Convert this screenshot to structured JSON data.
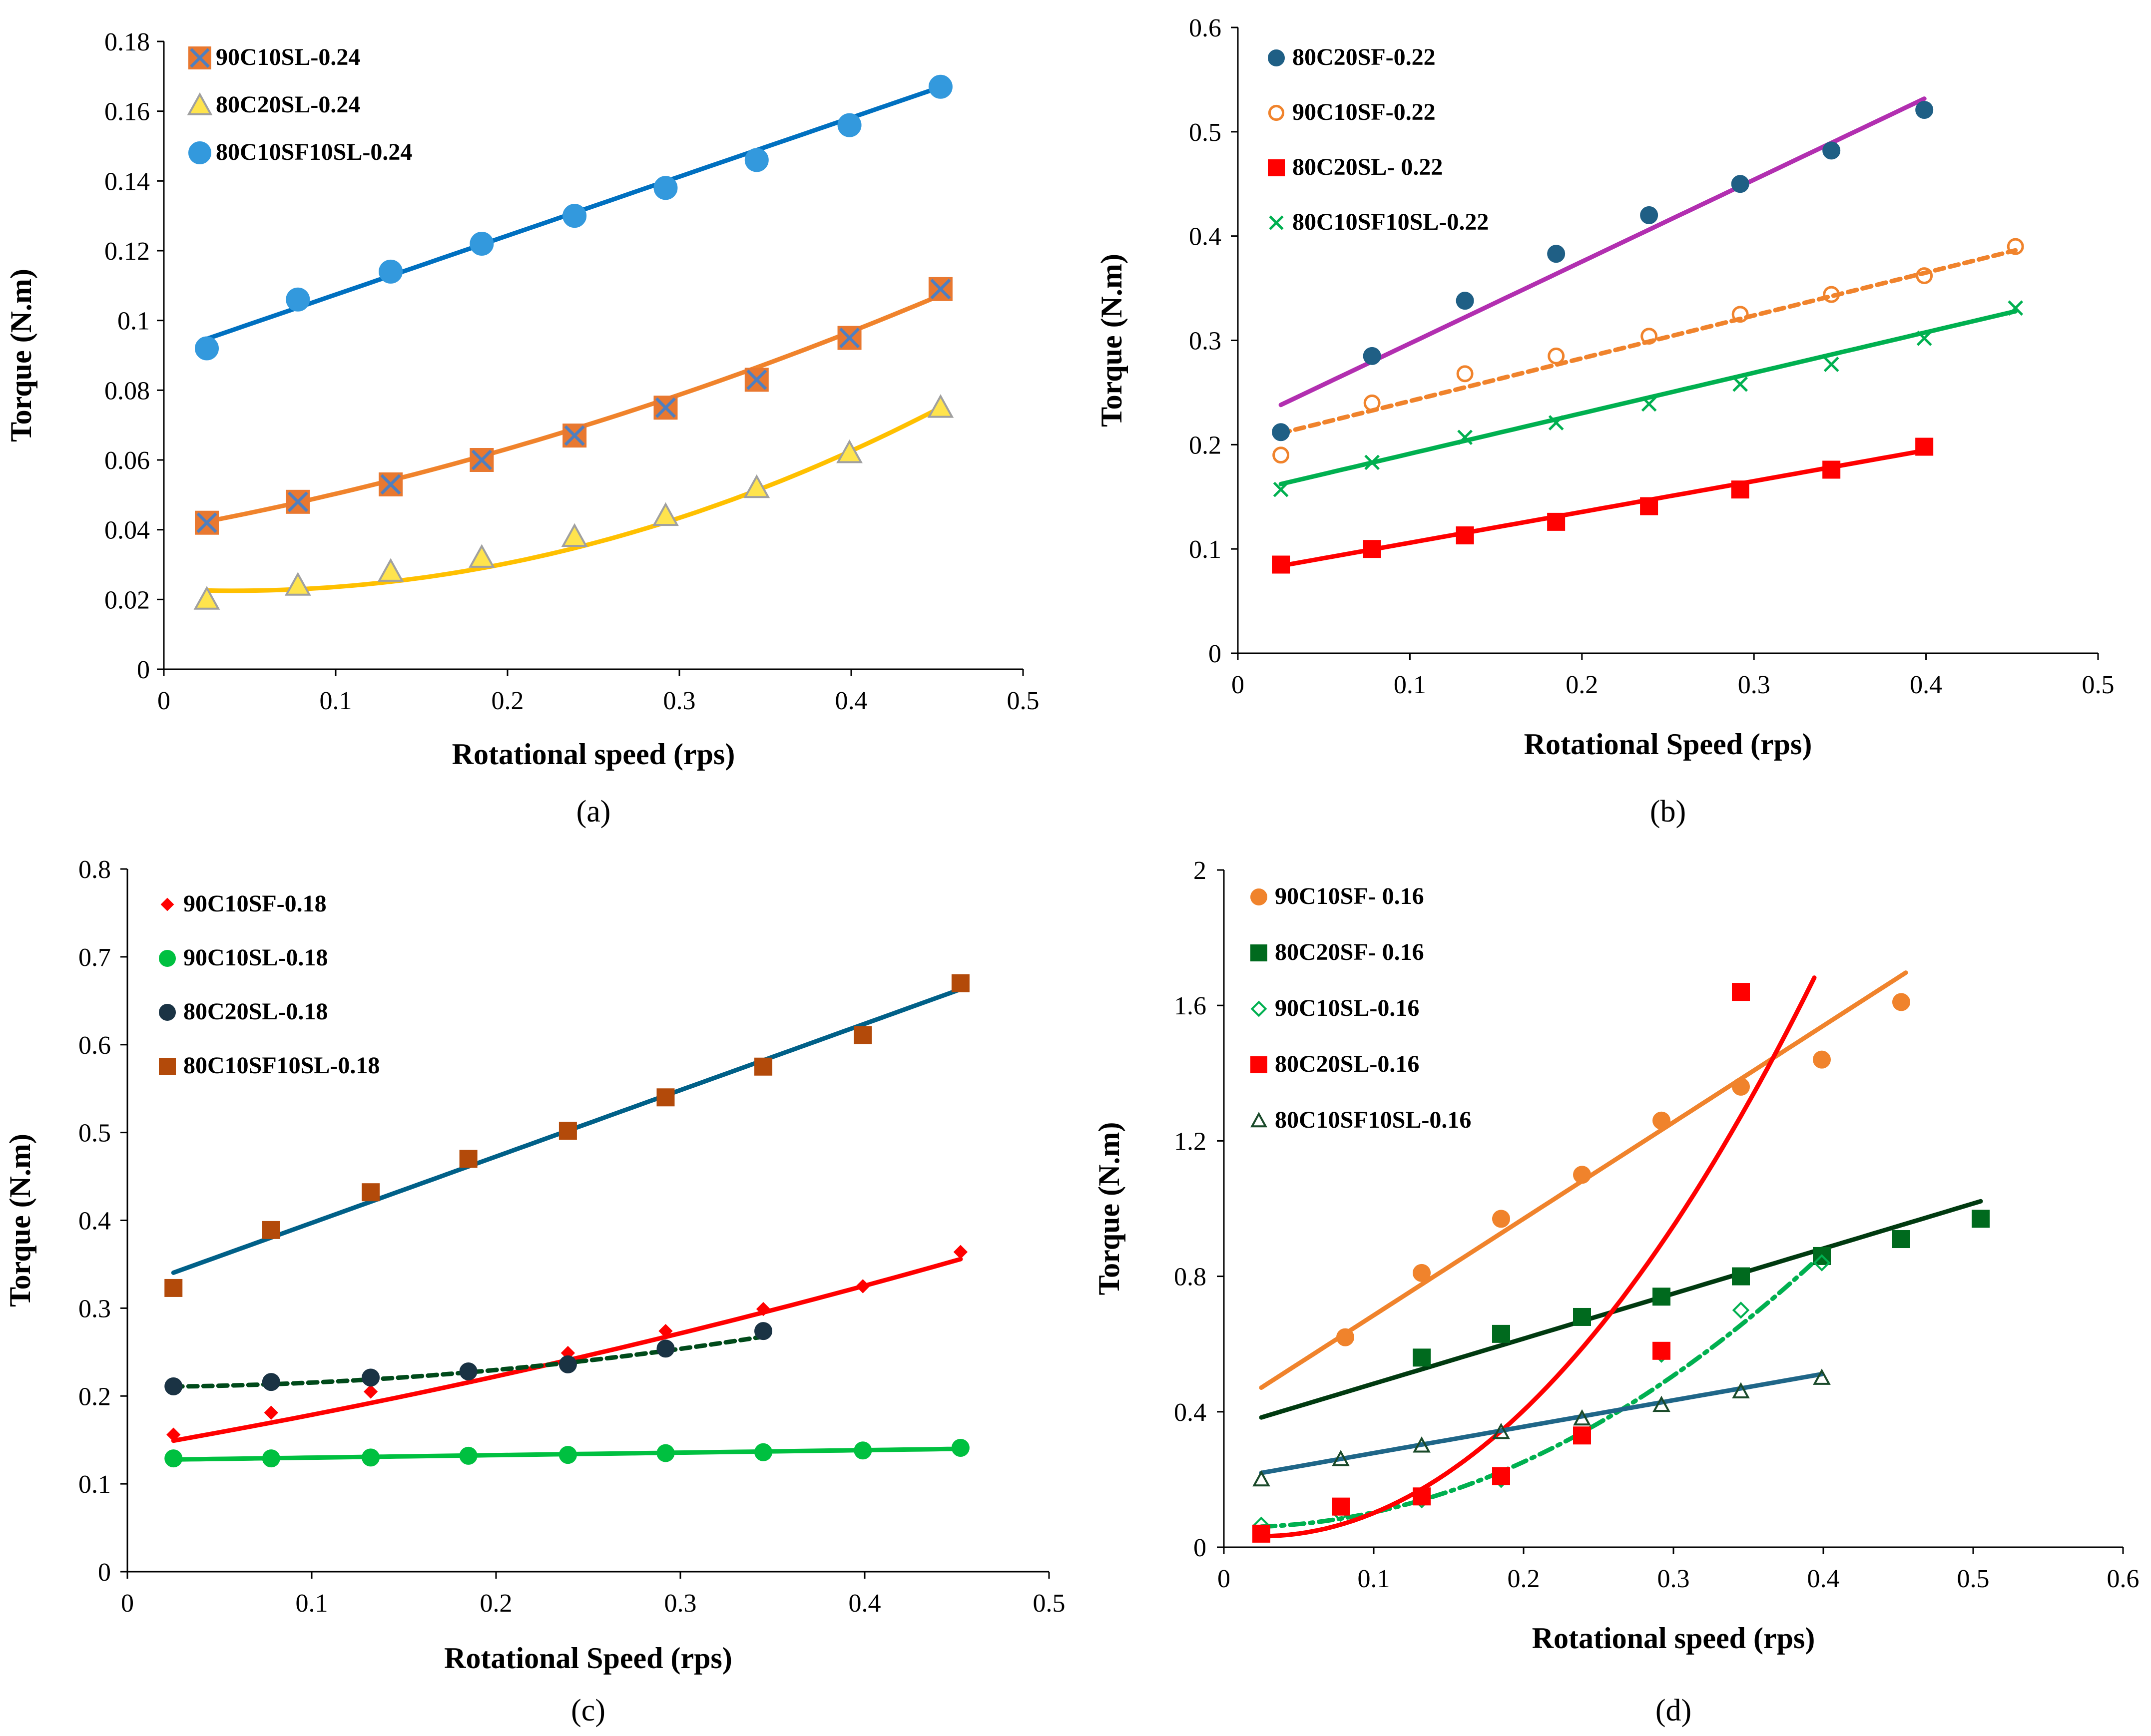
{
  "colors": {
    "blue": "#0070C0",
    "steel": "#3399DD",
    "orange": "#F0832C",
    "purple": "#B22FB0",
    "green": "#00B050",
    "red": "#FF0000",
    "darkteal": "#006088",
    "darkgreen": "#004A1A",
    "rust": "#B34A0A"
  },
  "chart_data": [
    {
      "id": "a",
      "type": "scatter",
      "label": "(a)",
      "xlabel": "Rotational speed (rps)",
      "ylabel": "Torque (N.m)",
      "xlim": [
        0,
        0.5
      ],
      "ylim": [
        0,
        0.18
      ],
      "xticks": [
        "0",
        "0.1",
        "0.2",
        "0.3",
        "0.4",
        "0.5"
      ],
      "yticks": [
        "0",
        "0.02",
        "0.04",
        "0.06",
        "0.08",
        "0.1",
        "0.12",
        "0.14",
        "0.16",
        "0.18"
      ],
      "series": [
        {
          "name": "90C10SL-0.24",
          "marker": "square-x",
          "color": "#E87830",
          "markerFill": "#E87830",
          "markerStroke": "#4F7FC0",
          "x": [
            0.025,
            0.078,
            0.132,
            0.185,
            0.239,
            0.292,
            0.345,
            0.399,
            0.452
          ],
          "y": [
            0.042,
            0.048,
            0.053,
            0.06,
            0.067,
            0.075,
            0.083,
            0.095,
            0.109
          ],
          "fit": {
            "type": "poly2",
            "coef": [
              0.04,
              0.09,
              0.13
            ],
            "color": "#F0832C",
            "dash": ""
          }
        },
        {
          "name": "80C20SL-0.24",
          "marker": "triangle",
          "color": "#FFD000",
          "markerFill": "#FFE44D",
          "markerStroke": "#A0A0A0",
          "x": [
            0.025,
            0.078,
            0.132,
            0.185,
            0.239,
            0.292,
            0.345,
            0.399,
            0.452
          ],
          "y": [
            0.02,
            0.024,
            0.028,
            0.032,
            0.038,
            0.044,
            0.052,
            0.062,
            0.075
          ],
          "fit": {
            "type": "poly2",
            "coef": [
              0.023,
              -0.025,
              0.31
            ],
            "color": "#FFC000",
            "dash": ""
          }
        },
        {
          "name": "80C10SF10SL-0.24",
          "marker": "circle",
          "color": "#3399DD",
          "markerFill": "#3399DD",
          "markerStroke": "#3399DD",
          "x": [
            0.025,
            0.078,
            0.132,
            0.185,
            0.239,
            0.292,
            0.345,
            0.399,
            0.452
          ],
          "y": [
            0.092,
            0.106,
            0.114,
            0.122,
            0.13,
            0.138,
            0.146,
            0.156,
            0.167
          ],
          "fit": {
            "type": "linear",
            "coef": [
              0.0905,
              0.1691
            ],
            "color": "#0070C0",
            "dash": ""
          }
        }
      ]
    },
    {
      "id": "b",
      "type": "scatter",
      "label": "(b)",
      "xlabel": "Rotational Speed (rps)",
      "ylabel": "Torque (N.m)",
      "xlim": [
        0,
        0.5
      ],
      "ylim": [
        0,
        0.6
      ],
      "xticks": [
        "0",
        "0.1",
        "0.2",
        "0.3",
        "0.4",
        "0.5"
      ],
      "yticks": [
        "0",
        "0.1",
        "0.2",
        "0.3",
        "0.4",
        "0.5",
        "0.6"
      ],
      "series": [
        {
          "name": "80C20SF-0.22",
          "marker": "circle",
          "color": "#1F5F85",
          "markerFill": "#1F5F85",
          "markerStroke": "#1F5F85",
          "x": [
            0.025,
            0.078,
            0.132,
            0.185,
            0.239,
            0.292,
            0.345,
            0.399
          ],
          "y": [
            0.212,
            0.285,
            0.338,
            0.383,
            0.42,
            0.45,
            0.482,
            0.521
          ],
          "fit": {
            "type": "linear",
            "coef": [
              0.2185,
              0.785
            ],
            "color": "#B22FB0",
            "dash": ""
          }
        },
        {
          "name": "90C10SF-0.22",
          "marker": "circle-open",
          "color": "#F0832C",
          "markerFill": "none",
          "markerStroke": "#F0832C",
          "x": [
            0.025,
            0.078,
            0.132,
            0.185,
            0.239,
            0.292,
            0.345,
            0.399,
            0.452
          ],
          "y": [
            0.19,
            0.24,
            0.268,
            0.285,
            0.304,
            0.325,
            0.344,
            0.362,
            0.39
          ],
          "fit": {
            "type": "linear",
            "coef": [
              0.2007,
              0.4106
            ],
            "color": "#F0832C",
            "dash": "18,12"
          }
        },
        {
          "name": "80C20SL- 0.22",
          "marker": "square",
          "color": "#FF0000",
          "markerFill": "#FF0000",
          "markerStroke": "#FF0000",
          "x": [
            0.025,
            0.078,
            0.132,
            0.185,
            0.239,
            0.292,
            0.345,
            0.399
          ],
          "y": [
            0.085,
            0.1,
            0.113,
            0.126,
            0.141,
            0.157,
            0.176,
            0.198
          ],
          "fit": {
            "type": "linear",
            "coef": [
              0.0764,
              0.2955
            ],
            "color": "#FF0000",
            "dash": ""
          }
        },
        {
          "name": "80C10SF10SL-0.22",
          "marker": "x",
          "color": "#00B050",
          "markerFill": "none",
          "markerStroke": "#00B050",
          "x": [
            0.025,
            0.078,
            0.132,
            0.185,
            0.239,
            0.292,
            0.345,
            0.399,
            0.452
          ],
          "y": [
            0.157,
            0.183,
            0.207,
            0.221,
            0.239,
            0.258,
            0.277,
            0.302,
            0.331
          ],
          "fit": {
            "type": "linear",
            "coef": [
              0.1525,
              0.3881
            ],
            "color": "#00B050",
            "dash": ""
          }
        }
      ]
    },
    {
      "id": "c",
      "type": "scatter",
      "label": "(c)",
      "xlabel": "Rotational Speed (rps)",
      "ylabel": "Torque (N.m)",
      "xlim": [
        0,
        0.5
      ],
      "ylim": [
        0,
        0.8
      ],
      "xticks": [
        "0",
        "0.1",
        "0.2",
        "0.3",
        "0.4",
        "0.5"
      ],
      "yticks": [
        "0",
        "0.1",
        "0.2",
        "0.3",
        "0.4",
        "0.5",
        "0.6",
        "0.7",
        "0.8"
      ],
      "series": [
        {
          "name": "90C10SF-0.18",
          "marker": "diamond",
          "color": "#FF0000",
          "markerFill": "#FF0000",
          "markerStroke": "#FF0000",
          "x": [
            0.025,
            0.078,
            0.132,
            0.185,
            0.239,
            0.292,
            0.345,
            0.399,
            0.452
          ],
          "y": [
            0.156,
            0.181,
            0.205,
            0.228,
            0.249,
            0.274,
            0.299,
            0.325,
            0.364
          ],
          "fit": {
            "type": "poly2",
            "coef": [
              0.14,
              0.36,
              0.26
            ],
            "color": "#FF0000",
            "dash": ""
          }
        },
        {
          "name": "90C10SL-0.18",
          "marker": "circle",
          "color": "#00C040",
          "markerFill": "#00C040",
          "markerStroke": "#00C040",
          "x": [
            0.025,
            0.078,
            0.132,
            0.185,
            0.239,
            0.292,
            0.345,
            0.399,
            0.452
          ],
          "y": [
            0.129,
            0.129,
            0.13,
            0.132,
            0.133,
            0.135,
            0.136,
            0.138,
            0.141
          ],
          "fit": {
            "type": "linear",
            "coef": [
              0.127,
              0.0285
            ],
            "color": "#00C040",
            "dash": ""
          }
        },
        {
          "name": "80C20SL-0.18",
          "marker": "circle",
          "color": "#1A3344",
          "markerFill": "#1A3344",
          "markerStroke": "#1A3344",
          "x": [
            0.025,
            0.078,
            0.132,
            0.185,
            0.239,
            0.292,
            0.345
          ],
          "y": [
            0.211,
            0.216,
            0.221,
            0.228,
            0.236,
            0.254,
            0.274
          ],
          "fit": {
            "type": "poly2",
            "coef": [
              0.2105,
              0.0,
              0.48
            ],
            "color": "#004A1A",
            "dash": "18,12"
          }
        },
        {
          "name": "80C10SF10SL-0.18",
          "marker": "square",
          "color": "#B34A0A",
          "markerFill": "#B34A0A",
          "markerStroke": "#B34A0A",
          "x": [
            0.025,
            0.078,
            0.132,
            0.185,
            0.239,
            0.292,
            0.345,
            0.399,
            0.452
          ],
          "y": [
            0.323,
            0.389,
            0.432,
            0.47,
            0.502,
            0.54,
            0.575,
            0.611,
            0.67
          ],
          "fit": {
            "type": "linear",
            "coef": [
              0.3215,
              0.7557
            ],
            "color": "#006088",
            "dash": ""
          }
        }
      ]
    },
    {
      "id": "d",
      "type": "scatter",
      "label": "(d)",
      "xlabel": "Rotational speed (rps)",
      "ylabel": "Torque (N.m)",
      "xlim": [
        0,
        0.6
      ],
      "ylim": [
        0,
        2
      ],
      "xticks": [
        "0",
        "0.1",
        "0.2",
        "0.3",
        "0.4",
        "0.5",
        "0.6"
      ],
      "yticks": [
        "0",
        "0.4",
        "0.8",
        "1.2",
        "1.6",
        "2"
      ],
      "series": [
        {
          "name": "90C10SF- 0.16",
          "marker": "circle",
          "color": "#F0832C",
          "markerFill": "#F0832C",
          "markerStroke": "#F0832C",
          "x": [
            0.081,
            0.132,
            0.185,
            0.239,
            0.292,
            0.345,
            0.399,
            0.452
          ],
          "y": [
            0.62,
            0.81,
            0.97,
            1.1,
            1.26,
            1.36,
            1.44,
            1.61
          ],
          "fit": {
            "type": "linear",
            "coef": [
              0.4,
              2.85
            ],
            "color": "#F0832C",
            "dash": "",
            "x0": 0.025,
            "x1": 0.455
          }
        },
        {
          "name": "80C20SF- 0.16",
          "marker": "square",
          "color": "#006A1E",
          "markerFill": "#006A1E",
          "markerStroke": "#006A1E",
          "x": [
            0.132,
            0.185,
            0.239,
            0.292,
            0.345,
            0.399,
            0.452,
            0.505
          ],
          "y": [
            0.56,
            0.63,
            0.68,
            0.74,
            0.8,
            0.86,
            0.91,
            0.97
          ],
          "fit": {
            "type": "linear",
            "coef": [
              0.35,
              1.33
            ],
            "color": "#003A10",
            "dash": "",
            "x0": 0.025,
            "x1": 0.505
          }
        },
        {
          "name": "90C10SL-0.16",
          "marker": "diamond-open",
          "color": "#00B050",
          "markerFill": "none",
          "markerStroke": "#00B050",
          "x": [
            0.025,
            0.078,
            0.132,
            0.185,
            0.239,
            0.292,
            0.345,
            0.399
          ],
          "y": [
            0.065,
            0.1,
            0.14,
            0.2,
            0.33,
            0.57,
            0.7,
            0.84
          ],
          "fit": {
            "type": "poly2",
            "coef": [
              0.06,
              -0.1,
              5.3
            ],
            "color": "#00B050",
            "dash": "28,12,6,12",
            "x0": 0.025,
            "x1": 0.399
          }
        },
        {
          "name": "80C20SL-0.16",
          "marker": "square",
          "color": "#FF0000",
          "markerFill": "#FF0000",
          "markerStroke": "#FF0000",
          "x": [
            0.025,
            0.078,
            0.132,
            0.185,
            0.239,
            0.292,
            0.345
          ],
          "y": [
            0.04,
            0.12,
            0.15,
            0.21,
            0.33,
            0.58,
            1.64
          ],
          "fit": {
            "type": "poly2",
            "coef": [
              0.04,
              -0.6,
              12.1
            ],
            "color": "#FF0000",
            "dash": "",
            "x0": 0.025,
            "x1": 0.394
          }
        },
        {
          "name": "80C10SF10SL-0.16",
          "marker": "triangle-open",
          "color": "#1A4A2A",
          "markerFill": "none",
          "markerStroke": "#1A4A2A",
          "x": [
            0.025,
            0.078,
            0.132,
            0.185,
            0.239,
            0.292,
            0.345,
            0.399
          ],
          "y": [
            0.2,
            0.26,
            0.3,
            0.34,
            0.38,
            0.42,
            0.46,
            0.5
          ],
          "fit": {
            "type": "linear",
            "coef": [
              0.2,
              0.78
            ],
            "color": "#1F6688",
            "dash": "",
            "x0": 0.025,
            "x1": 0.399
          }
        }
      ]
    }
  ]
}
